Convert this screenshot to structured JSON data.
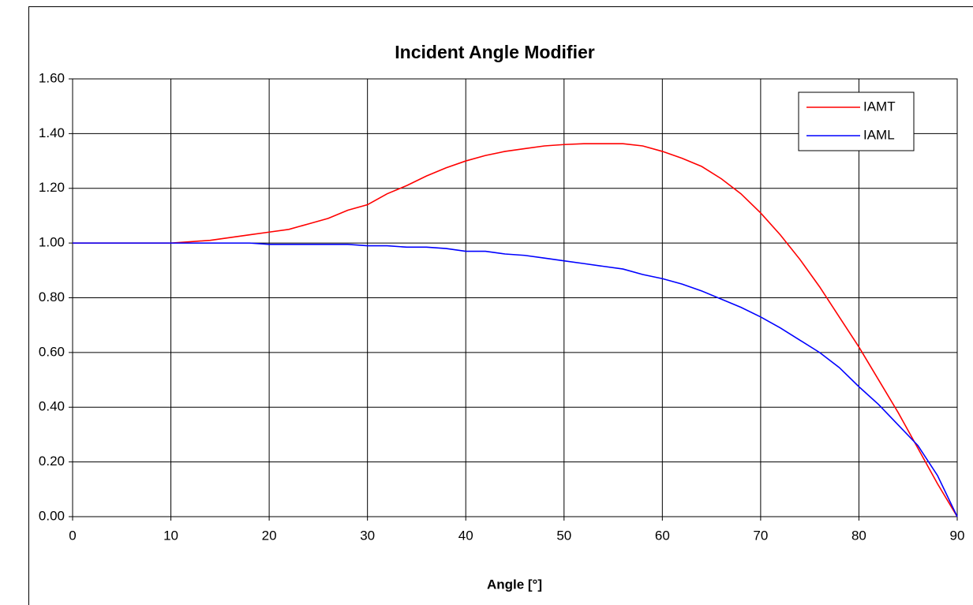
{
  "chart_data": {
    "type": "line",
    "title": "Incident Angle Modifier",
    "x_label": "Angle [°]",
    "x": [
      0,
      2,
      4,
      6,
      8,
      10,
      12,
      14,
      16,
      18,
      20,
      22,
      24,
      26,
      28,
      30,
      32,
      34,
      36,
      38,
      40,
      42,
      44,
      46,
      48,
      50,
      52,
      54,
      56,
      58,
      60,
      62,
      64,
      66,
      68,
      70,
      72,
      74,
      76,
      78,
      80,
      82,
      84,
      86,
      88,
      90
    ],
    "series": [
      {
        "name": "IAMT",
        "color": "#ff0000",
        "values": [
          1.0,
          1.0,
          1.0,
          1.0,
          1.0,
          1.0,
          1.005,
          1.01,
          1.02,
          1.03,
          1.04,
          1.05,
          1.07,
          1.09,
          1.12,
          1.14,
          1.18,
          1.21,
          1.245,
          1.275,
          1.3,
          1.32,
          1.335,
          1.345,
          1.355,
          1.36,
          1.363,
          1.363,
          1.363,
          1.355,
          1.335,
          1.31,
          1.28,
          1.235,
          1.18,
          1.11,
          1.03,
          0.94,
          0.84,
          0.73,
          0.62,
          0.5,
          0.38,
          0.25,
          0.12,
          0.0
        ]
      },
      {
        "name": "IAML",
        "color": "#0000ff",
        "values": [
          1.0,
          1.0,
          1.0,
          1.0,
          1.0,
          1.0,
          1.0,
          1.0,
          1.0,
          1.0,
          0.995,
          0.995,
          0.995,
          0.995,
          0.995,
          0.99,
          0.99,
          0.985,
          0.985,
          0.98,
          0.97,
          0.97,
          0.96,
          0.955,
          0.945,
          0.935,
          0.925,
          0.915,
          0.905,
          0.885,
          0.87,
          0.85,
          0.825,
          0.795,
          0.765,
          0.73,
          0.69,
          0.645,
          0.6,
          0.545,
          0.475,
          0.41,
          0.335,
          0.26,
          0.15,
          0.0
        ]
      }
    ],
    "xlim": [
      0,
      90
    ],
    "xticks": [
      0,
      10,
      20,
      30,
      40,
      50,
      60,
      70,
      80,
      90
    ],
    "ylim": [
      0,
      1.6
    ],
    "yticks": [
      {
        "value": 0,
        "label": "0.00"
      },
      {
        "value": 0.2,
        "label": "0.20"
      },
      {
        "value": 0.4,
        "label": "0.40"
      },
      {
        "value": 0.6,
        "label": "0.60"
      },
      {
        "value": 0.8,
        "label": "0.80"
      },
      {
        "value": 1,
        "label": "1.00"
      },
      {
        "value": 1.2,
        "label": "1.20"
      },
      {
        "value": 1.4,
        "label": "1.40"
      },
      {
        "value": 1.6,
        "label": "1.60"
      }
    ],
    "grid": true,
    "legend": "upper right"
  }
}
